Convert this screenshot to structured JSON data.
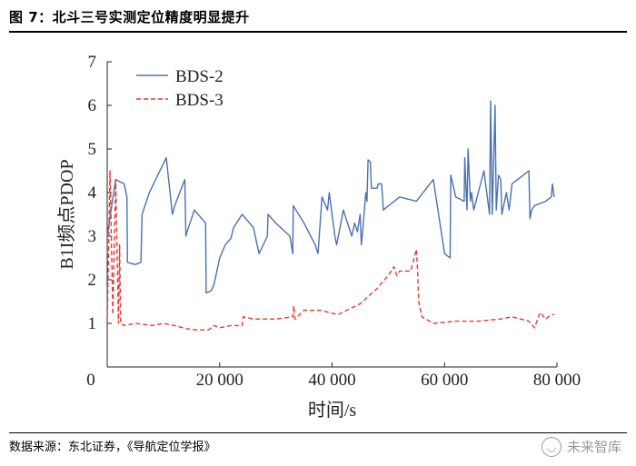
{
  "figure": {
    "caption": "图 7：北斗三号实测定位精度明显提升",
    "source": "数据来源：东北证券，《导航定位学报》",
    "watermark": "未来智库",
    "watermark_icon": "wechat-icon"
  },
  "chart_data": {
    "type": "line",
    "title": "",
    "xlabel": "时间/s",
    "ylabel": "B1I频点PDOP",
    "xlim": [
      0,
      80000
    ],
    "ylim": [
      0,
      7
    ],
    "x_ticks": [
      0,
      20000,
      40000,
      60000,
      80000
    ],
    "x_tick_labels": [
      "0",
      "20 000",
      "40 000",
      "60 000",
      "80 000"
    ],
    "y_ticks": [
      1,
      2,
      3,
      4,
      5,
      6,
      7
    ],
    "y_tick_labels": [
      "1",
      "2",
      "3",
      "4",
      "5",
      "6",
      "7"
    ],
    "grid": false,
    "legend_position": "top-left",
    "series": [
      {
        "name": "BDS-2",
        "color": "#4a72b0",
        "style": "solid",
        "x": [
          0,
          1500,
          3000,
          3500,
          3600,
          5000,
          6000,
          6200,
          7500,
          10500,
          11500,
          11600,
          12000,
          13800,
          14000,
          14200,
          15500,
          17500,
          17600,
          18500,
          19000,
          20000,
          21000,
          22000,
          22500,
          24000,
          26000,
          27000,
          28500,
          28600,
          30000,
          32500,
          33000,
          33100,
          35000,
          37000,
          37500,
          38200,
          39200,
          39500,
          40500,
          40800,
          42000,
          43500,
          44000,
          44500,
          45000,
          45200,
          45500,
          46000,
          46200,
          46400,
          46800,
          47000,
          48000,
          48200,
          48800,
          49000,
          49100,
          52000,
          55000,
          58000,
          60000,
          61000,
          61100,
          62000,
          63500,
          63600,
          64000,
          64200,
          64600,
          64800,
          65200,
          66000,
          67000,
          68000,
          68200,
          68500,
          69000,
          69200,
          69600,
          70000,
          70200,
          71000,
          71500,
          72000,
          74000,
          75000,
          75200,
          75500,
          76000,
          78000,
          79000,
          79200,
          79500
        ],
        "y": [
          3.0,
          4.3,
          4.2,
          3.9,
          2.4,
          2.35,
          2.4,
          3.5,
          4.0,
          4.8,
          3.6,
          3.5,
          3.7,
          4.3,
          3.0,
          3.1,
          3.6,
          3.3,
          1.7,
          1.75,
          1.9,
          2.5,
          2.8,
          2.95,
          3.2,
          3.5,
          3.2,
          2.6,
          3.0,
          3.5,
          3.3,
          3.0,
          2.6,
          3.7,
          3.3,
          2.8,
          2.6,
          3.9,
          3.6,
          4.0,
          3.0,
          2.8,
          3.6,
          3.0,
          3.3,
          3.1,
          3.5,
          2.8,
          3.2,
          4.0,
          3.8,
          4.75,
          4.7,
          4.1,
          4.1,
          4.2,
          4.2,
          3.85,
          3.6,
          3.9,
          3.8,
          4.3,
          2.6,
          2.5,
          4.4,
          3.9,
          3.8,
          4.8,
          3.6,
          5.0,
          3.8,
          4.0,
          3.6,
          4.0,
          4.5,
          3.5,
          6.1,
          3.5,
          6.0,
          3.6,
          4.4,
          4.3,
          3.5,
          4.0,
          3.6,
          4.2,
          4.4,
          4.5,
          3.4,
          3.6,
          3.7,
          3.8,
          3.9,
          4.2,
          3.9
        ]
      },
      {
        "name": "BDS-3",
        "color": "#e53935",
        "style": "dashed",
        "x": [
          0,
          500,
          1000,
          1500,
          2000,
          2200,
          2400,
          3000,
          5000,
          8000,
          10000,
          12000,
          14000,
          16000,
          18000,
          19000,
          20000,
          22000,
          24000,
          24200,
          26000,
          30000,
          33000,
          33200,
          33400,
          35000,
          38000,
          41000,
          45000,
          48000,
          50000,
          51000,
          51500,
          52000,
          54000,
          55000,
          55200,
          55400,
          56000,
          58000,
          62000,
          66000,
          70000,
          72000,
          75000,
          76000,
          77000,
          78000,
          79000,
          79500
        ],
        "y": [
          1.0,
          4.5,
          1.2,
          4.3,
          1.0,
          2.8,
          1.0,
          0.95,
          1.0,
          0.95,
          1.0,
          0.95,
          0.88,
          0.85,
          0.85,
          0.95,
          0.9,
          0.95,
          0.95,
          1.15,
          1.1,
          1.1,
          1.15,
          1.4,
          1.1,
          1.3,
          1.3,
          1.2,
          1.45,
          1.8,
          2.1,
          2.3,
          2.1,
          2.2,
          2.2,
          2.7,
          2.25,
          1.5,
          1.15,
          1.0,
          1.05,
          1.05,
          1.1,
          1.15,
          1.05,
          0.9,
          1.25,
          1.1,
          1.2,
          1.2
        ]
      }
    ]
  }
}
